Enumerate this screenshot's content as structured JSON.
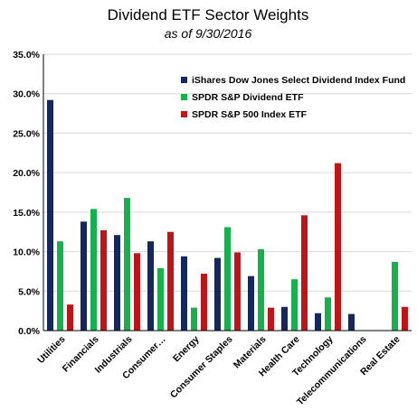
{
  "chart_data": {
    "type": "bar",
    "title": "Dividend ETF Sector Weights",
    "subtitle": "as of 9/30/2016",
    "xlabel": "",
    "ylabel": "",
    "ylim": [
      0,
      35
    ],
    "y_ticks": [
      "0.0%",
      "5.0%",
      "10.0%",
      "15.0%",
      "20.0%",
      "25.0%",
      "30.0%",
      "35.0%"
    ],
    "grid": true,
    "legend_position": "top-right",
    "categories": [
      "Utilities",
      "Financials",
      "Industrials",
      "Consumer…",
      "Energy",
      "Consumer Staples",
      "Materials",
      "Health Care",
      "Technology",
      "Telecommunications",
      "Real Estate"
    ],
    "series": [
      {
        "name": "iShares Dow Jones Select Dividend Index Fund",
        "color": "#14275e",
        "values": [
          29.2,
          13.8,
          12.1,
          11.3,
          9.4,
          9.2,
          6.9,
          3.0,
          2.2,
          2.1,
          null
        ]
      },
      {
        "name": "SPDR S&P Dividend ETF",
        "color": "#16b04c",
        "values": [
          11.3,
          15.4,
          16.8,
          7.9,
          2.9,
          13.1,
          10.3,
          6.5,
          4.2,
          null,
          8.7
        ]
      },
      {
        "name": "SPDR S&P 500 Index ETF",
        "color": "#c01418",
        "values": [
          3.3,
          12.7,
          9.8,
          12.5,
          7.2,
          9.9,
          2.9,
          14.6,
          21.2,
          null,
          3.0
        ]
      }
    ]
  }
}
